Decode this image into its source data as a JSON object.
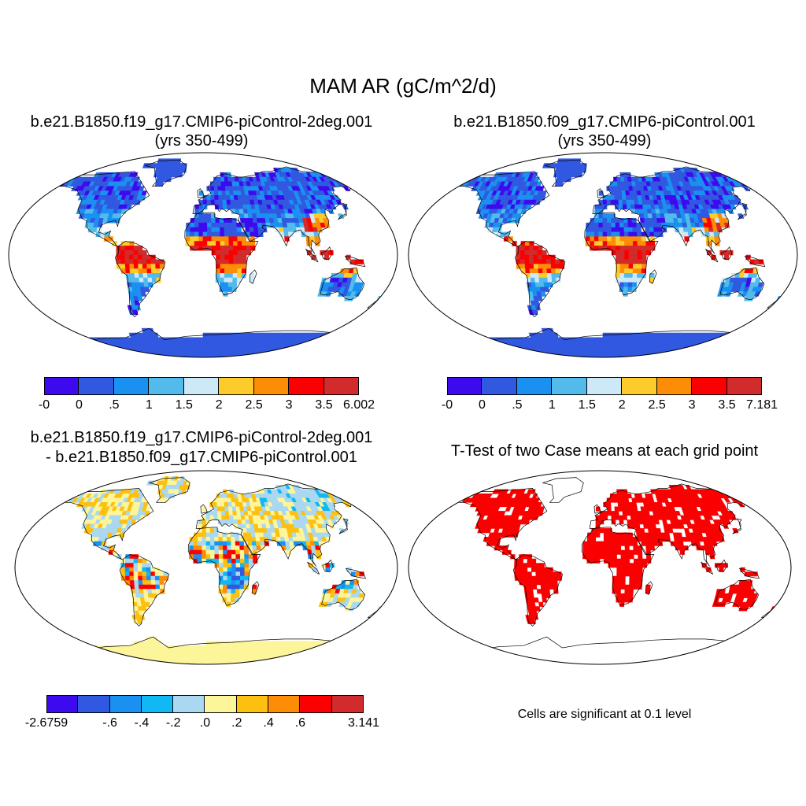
{
  "figure": {
    "title": "MAM AR (gC/m^2/d)",
    "footnote": "Cells are significant at 0.1 level"
  },
  "panels": [
    {
      "id": "case1",
      "title_line1": "b.e21.B1850.f19_g17.CMIP6-piControl-2deg.001",
      "title_line2": "(yrs 350-499)",
      "colorbar": {
        "colors": [
          "#3d0aef",
          "#3158e0",
          "#1a91f0",
          "#52bbec",
          "#cde9f8",
          "#fdcc2a",
          "#fd8c07",
          "#fb0000",
          "#d12b2b"
        ],
        "labels": [
          "-0",
          "0",
          ".5",
          "1",
          "1.5",
          "2",
          "2.5",
          "3",
          "3.5",
          "6.002"
        ]
      }
    },
    {
      "id": "case2",
      "title_line1": "b.e21.B1850.f09_g17.CMIP6-piControl.001",
      "title_line2": "(yrs 350-499)",
      "colorbar": {
        "colors": [
          "#3d0aef",
          "#3158e0",
          "#1a91f0",
          "#52bbec",
          "#cde9f8",
          "#fdcc2a",
          "#fd8c07",
          "#fb0000",
          "#d12b2b"
        ],
        "labels": [
          "-0",
          "0",
          ".5",
          "1",
          "1.5",
          "2",
          "2.5",
          "3",
          "3.5",
          "7.181"
        ]
      }
    },
    {
      "id": "diff",
      "title_line1": "b.e21.B1850.f19_g17.CMIP6-piControl-2deg.001",
      "title_line2": "- b.e21.B1850.f09_g17.CMIP6-piControl.001",
      "colorbar": {
        "colors": [
          "#3d0aef",
          "#3158e0",
          "#1a91f0",
          "#10b8f4",
          "#a9d8f0",
          "#fdf59a",
          "#fdc010",
          "#fd8c07",
          "#fb0000",
          "#d12b2b"
        ],
        "labels": [
          "-2.6759",
          "",
          "-.6",
          "-.4",
          "-.2",
          ".0",
          ".2",
          ".4",
          ".6",
          "",
          "3.141"
        ]
      }
    },
    {
      "id": "ttest",
      "title_line1": "T-Test of two Case means at each grid point"
    }
  ],
  "colors": {
    "ocean": "#ffffff",
    "coast": "#000000",
    "antarctica_base": "#3158e0",
    "diff_base": "#fdf59a",
    "significant": "#fb0000"
  }
}
